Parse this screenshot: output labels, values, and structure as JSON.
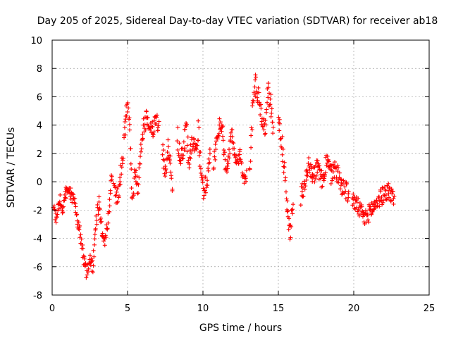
{
  "chart_data": {
    "type": "scatter",
    "title": "Day 205 of 2025, Sidereal Day-to-day VTEC variation (SDTVAR) for receiver ab18",
    "xlabel": "GPS time / hours",
    "ylabel": "SDTVAR / TECUs",
    "xlim": [
      0,
      25
    ],
    "ylim": [
      -8,
      10
    ],
    "xticks": [
      0,
      5,
      10,
      15,
      20,
      25
    ],
    "yticks": [
      -8,
      -6,
      -4,
      -2,
      0,
      2,
      4,
      6,
      8,
      10
    ],
    "grid": true,
    "marker": "plus",
    "color": "#ff0000",
    "series": [
      {
        "name": "SDTVAR",
        "segments": [
          {
            "x": [
              0.1,
              0.3,
              0.5,
              0.7,
              0.9,
              1.1,
              1.3,
              1.5,
              1.7,
              1.9,
              2.1,
              2.3,
              2.5,
              2.7,
              2.9,
              3.1,
              3.3,
              3.5,
              3.7,
              3.9,
              4.0
            ],
            "y": [
              -2.0,
              -2.5,
              -1.2,
              -2.2,
              -0.8,
              -0.6,
              -1.0,
              -1.5,
              -2.8,
              -4.0,
              -5.5,
              -6.5,
              -5.5,
              -6.0,
              -3.0,
              -1.5,
              -3.5,
              -4.2,
              -3.0,
              0.2,
              0.5
            ],
            "spread": 0.45
          },
          {
            "x": [
              4.1,
              4.3,
              4.5,
              4.7,
              4.9,
              5.0,
              5.1,
              5.2,
              5.3,
              5.5,
              5.7,
              5.9,
              6.1,
              6.3,
              6.5,
              6.7,
              6.9,
              7.1
            ],
            "y": [
              -0.5,
              -1.0,
              0.0,
              2.0,
              4.5,
              5.5,
              4.5,
              2.0,
              -1.5,
              1.0,
              -0.5,
              2.5,
              4.0,
              4.5,
              3.5,
              3.8,
              4.0,
              4.2
            ],
            "spread": 0.7
          },
          {
            "x": [
              7.3,
              7.5,
              7.7,
              7.9,
              8.0
            ],
            "y": [
              2.5,
              0.5,
              2.5,
              1.0,
              -1.5
            ],
            "spread": 0.6
          },
          {
            "x": [
              8.3,
              8.5,
              8.7,
              8.9,
              9.1,
              9.3,
              9.5,
              9.7,
              9.9,
              10.1,
              10.3,
              10.5
            ],
            "y": [
              3.5,
              1.5,
              2.5,
              3.8,
              1.0,
              3.0,
              2.0,
              3.5,
              0.0,
              -0.5,
              0.5,
              2.0
            ],
            "spread": 0.8
          },
          {
            "x": [
              10.7,
              10.9,
              11.1,
              11.3,
              11.5,
              11.7,
              11.9,
              12.1,
              12.3,
              12.5,
              12.7,
              12.9
            ],
            "y": [
              1.0,
              3.0,
              4.0,
              3.8,
              0.5,
              1.5,
              3.5,
              2.0,
              1.5,
              2.0,
              0.0,
              0.5
            ],
            "spread": 0.45
          },
          {
            "x": [
              13.1,
              13.3,
              13.5,
              13.7,
              13.9,
              14.1,
              14.3,
              14.5,
              14.7
            ],
            "y": [
              0.5,
              5.5,
              7.0,
              6.0,
              4.5,
              3.5,
              6.5,
              5.5,
              3.5
            ],
            "spread": 0.7
          },
          {
            "x": [
              15.0,
              15.2,
              15.4,
              15.6,
              15.8,
              16.0
            ],
            "y": [
              4.5,
              3.0,
              1.0,
              -2.5,
              -3.5,
              -1.0
            ],
            "spread": 0.8
          },
          {
            "x": [
              16.5,
              16.7,
              17.0,
              17.3,
              17.6,
              17.9,
              18.2,
              18.5,
              18.8,
              19.1,
              19.4,
              19.7
            ],
            "y": [
              -1.0,
              -0.5,
              1.5,
              0.5,
              1.0,
              0.0,
              1.5,
              0.5,
              1.0,
              0.0,
              -0.5,
              -1.0
            ],
            "spread": 0.7
          },
          {
            "x": [
              19.9,
              20.1,
              20.3,
              20.5,
              20.7,
              20.9,
              21.1,
              21.3,
              21.5,
              21.7,
              21.9,
              22.1,
              22.3,
              22.5,
              22.7
            ],
            "y": [
              -1.2,
              -1.5,
              -1.8,
              -2.2,
              -2.6,
              -2.4,
              -2.0,
              -1.8,
              -1.5,
              -1.2,
              -1.0,
              -0.8,
              -0.6,
              -1.0,
              -1.2
            ],
            "spread": 0.6
          }
        ]
      }
    ]
  }
}
